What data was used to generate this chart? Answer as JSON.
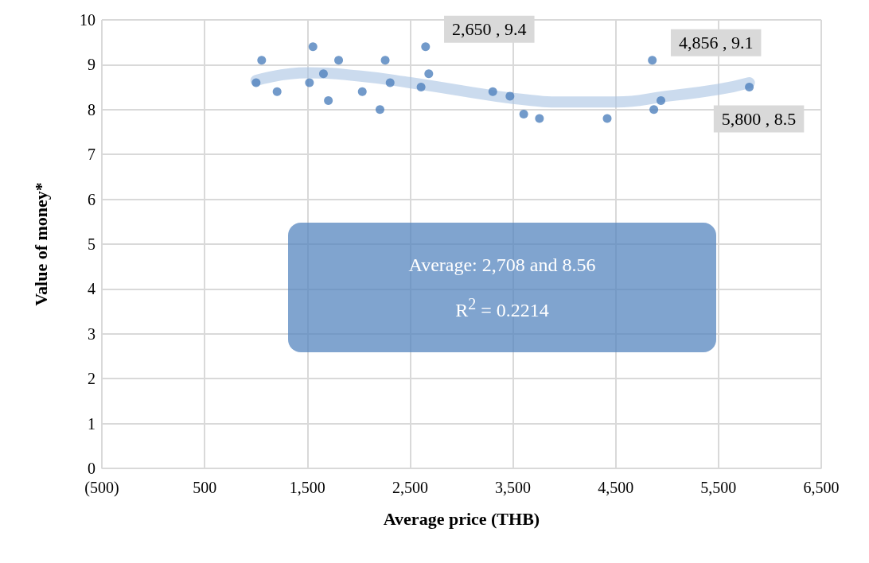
{
  "chart_data": {
    "type": "scatter",
    "xlabel": "Average price (THB)",
    "ylabel": "Value of money*",
    "xlim": [
      -500,
      6500
    ],
    "xticks": [
      {
        "value": -500,
        "label": "(500)"
      },
      500,
      {
        "value": 1500,
        "label": "1,500"
      },
      {
        "value": 2500,
        "label": "2,500"
      },
      {
        "value": 3500,
        "label": "3,500"
      },
      {
        "value": 4500,
        "label": "4,500"
      },
      {
        "value": 5500,
        "label": "5,500"
      },
      {
        "value": 6500,
        "label": "6,500"
      }
    ],
    "ylim": [
      0,
      10
    ],
    "yticks": [
      0,
      1,
      2,
      3,
      4,
      5,
      6,
      7,
      8,
      9,
      10
    ],
    "grid": true,
    "series": [
      {
        "marker": "circle",
        "color": "#4f81bd",
        "x": [
          1055,
          1001,
          1205,
          1554,
          1520,
          1656,
          1804,
          1704,
          2257,
          2034,
          2206,
          2305,
          2650,
          2681,
          2606,
          3304,
          3471,
          3605,
          3758,
          4417,
          4856,
          4871,
          4940,
          5800
        ],
        "values": [
          9.1,
          8.6,
          8.4,
          9.4,
          8.6,
          8.8,
          9.1,
          8.2,
          9.1,
          8.4,
          8.0,
          8.6,
          9.4,
          8.8,
          8.5,
          8.4,
          8.3,
          7.9,
          7.8,
          7.8,
          9.1,
          8.0,
          8.2,
          8.5
        ]
      },
      {
        "type": "line",
        "marker": "none",
        "color": "#a9c3e3",
        "x": [
          1000,
          1500,
          2000,
          2500,
          3000,
          3500,
          4000,
          4500,
          5000,
          5500,
          5800
        ],
        "values": [
          8.65,
          8.82,
          8.75,
          8.6,
          8.42,
          8.25,
          8.17,
          8.17,
          8.3,
          8.45,
          8.6
        ]
      }
    ],
    "annotations": [
      {
        "text": "2,650 , 9.4",
        "x": 2650,
        "y": 9.4
      },
      {
        "text": "4,856 , 9.1",
        "x": 4856,
        "y": 9.1
      },
      {
        "text": "5,800 , 8.5",
        "x": 5800,
        "y": 8.5
      },
      "Average: 2,708 and 8.56",
      "R$^{2}$ = 0.2214"
    ]
  }
}
